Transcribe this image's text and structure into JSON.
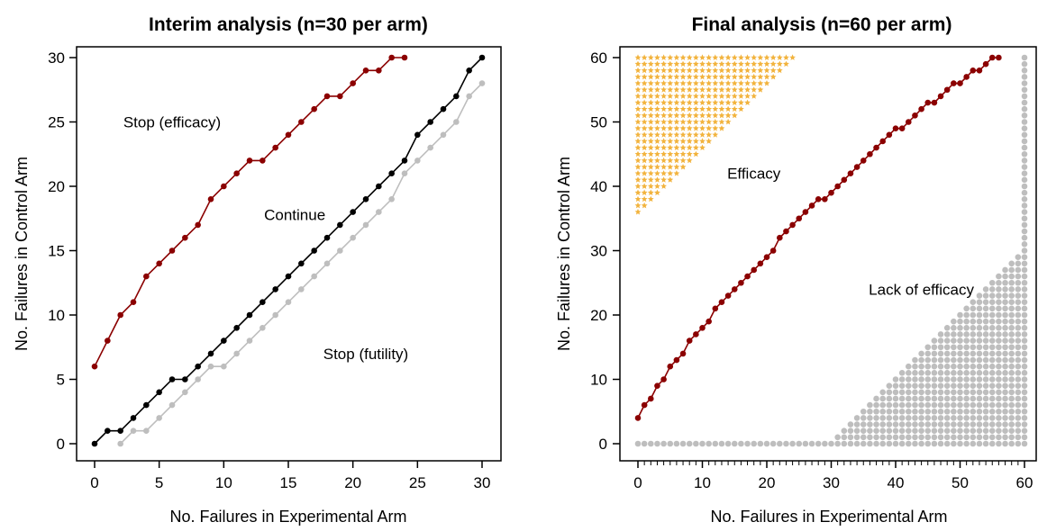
{
  "colors": {
    "red": "#8b0000",
    "black": "#000000",
    "grey": "#bebebe",
    "gold": "#f2b33d"
  },
  "chart_data": [
    {
      "type": "line",
      "title": "Interim analysis (n=30 per arm)",
      "xlabel": "No. Failures in Experimental Arm",
      "ylabel": "No. Failures in Control Arm",
      "xlim": [
        0,
        30
      ],
      "ylim": [
        0,
        30
      ],
      "xticks": [
        "0",
        "5",
        "10",
        "15",
        "20",
        "25",
        "30"
      ],
      "yticks": [
        "0",
        "5",
        "10",
        "15",
        "20",
        "25",
        "30"
      ],
      "annotations": [
        {
          "text": "Stop (efficacy)",
          "x": 6,
          "y": 25
        },
        {
          "text": "Continue",
          "x": 15.5,
          "y": 17.8
        },
        {
          "text": "Stop (futility)",
          "x": 21,
          "y": 7
        }
      ],
      "series": [
        {
          "color": "red",
          "x": [
            0,
            1,
            2,
            3,
            4,
            5,
            6,
            7,
            8,
            9,
            10,
            11,
            12,
            13,
            14,
            15,
            16,
            17,
            18,
            19,
            20,
            21,
            22,
            23,
            24
          ],
          "y": [
            6,
            8,
            10,
            11,
            13,
            14,
            15,
            16,
            17,
            19,
            20,
            21,
            22,
            22,
            23,
            24,
            25,
            26,
            27,
            27,
            28,
            29,
            29,
            30,
            30
          ]
        },
        {
          "color": "black",
          "x": [
            0,
            1,
            2,
            3,
            4,
            5,
            6,
            7,
            8,
            9,
            10,
            11,
            12,
            13,
            14,
            15,
            16,
            17,
            18,
            19,
            20,
            21,
            22,
            23,
            24,
            25,
            26,
            27,
            28,
            29,
            30
          ],
          "y": [
            0,
            1,
            1,
            2,
            3,
            4,
            5,
            5,
            6,
            7,
            8,
            9,
            10,
            11,
            12,
            13,
            14,
            15,
            16,
            17,
            18,
            19,
            20,
            21,
            22,
            24,
            25,
            26,
            27,
            29,
            30
          ]
        },
        {
          "color": "grey",
          "x": [
            2,
            3,
            4,
            5,
            6,
            7,
            8,
            9,
            10,
            11,
            12,
            13,
            14,
            15,
            16,
            17,
            18,
            19,
            20,
            21,
            22,
            23,
            24,
            25,
            26,
            27,
            28,
            29,
            30
          ],
          "y": [
            0,
            1,
            1,
            2,
            3,
            4,
            5,
            6,
            6,
            7,
            8,
            9,
            10,
            11,
            12,
            13,
            14,
            15,
            16,
            17,
            18,
            19,
            21,
            22,
            23,
            24,
            25,
            27,
            28
          ]
        }
      ]
    },
    {
      "type": "scatter",
      "title": "Final analysis (n=60 per arm)",
      "xlabel": "No. Failures in Experimental Arm",
      "ylabel": "No. Failures in Control Arm",
      "xlim": [
        0,
        60
      ],
      "ylim": [
        0,
        60
      ],
      "xticks": [
        "0",
        "10",
        "20",
        "30",
        "40",
        "50",
        "60"
      ],
      "yticks": [
        "0",
        "10",
        "20",
        "30",
        "40",
        "50",
        "60"
      ],
      "annotations": [
        {
          "text": "Efficacy",
          "x": 18,
          "y": 42
        },
        {
          "text": "Lack of efficacy",
          "x": 44,
          "y": 24
        }
      ],
      "efficacy_region": {
        "color": "gold",
        "marker": "star",
        "rule": "y >= 36 + x",
        "x_range": [
          0,
          24
        ],
        "y_max": 60
      },
      "lack_of_efficacy_region": {
        "color": "grey",
        "marker": "circle",
        "x": [
          0,
          1,
          2,
          3,
          4,
          5,
          6,
          7,
          8,
          9,
          10,
          11,
          12,
          13,
          14,
          15,
          16,
          17,
          18,
          19,
          20,
          21,
          22,
          23,
          24,
          25,
          26,
          27,
          28,
          29,
          30,
          31,
          32,
          33,
          34,
          35,
          36,
          37,
          38,
          39,
          40,
          41,
          42,
          43,
          44,
          45,
          46,
          47,
          48,
          49,
          50,
          51,
          52,
          53,
          54,
          55,
          56,
          57,
          58,
          59,
          60
        ],
        "y_max": [
          0,
          0,
          0,
          0,
          0,
          0,
          0,
          0,
          0,
          0,
          0,
          0,
          0,
          0,
          0,
          0,
          0,
          0,
          0,
          0,
          0,
          0,
          0,
          0,
          0,
          0,
          0,
          0,
          0,
          0,
          0,
          1,
          2,
          3,
          4,
          5,
          6,
          7,
          8,
          9,
          10,
          11,
          12,
          13,
          14,
          15,
          16,
          17,
          18,
          19,
          20,
          21,
          22,
          23,
          24,
          25,
          26,
          27,
          28,
          29,
          60
        ]
      },
      "series": [
        {
          "color": "red",
          "x": [
            0,
            1,
            2,
            3,
            4,
            5,
            6,
            7,
            8,
            9,
            10,
            11,
            12,
            13,
            14,
            15,
            16,
            17,
            18,
            19,
            20,
            21,
            22,
            23,
            24,
            25,
            26,
            27,
            28,
            29,
            30,
            31,
            32,
            33,
            34,
            35,
            36,
            37,
            38,
            39,
            40,
            41,
            42,
            43,
            44,
            45,
            46,
            47,
            48,
            49,
            50,
            51,
            52,
            53,
            54,
            55,
            56
          ],
          "y": [
            4,
            6,
            7,
            9,
            10,
            12,
            13,
            14,
            16,
            17,
            18,
            19,
            21,
            22,
            23,
            24,
            25,
            26,
            27,
            28,
            29,
            30,
            32,
            33,
            34,
            35,
            36,
            37,
            38,
            38,
            39,
            40,
            41,
            42,
            43,
            44,
            45,
            46,
            47,
            48,
            49,
            49,
            50,
            51,
            52,
            53,
            53,
            54,
            55,
            56,
            56,
            57,
            58,
            58,
            59,
            60,
            60
          ]
        }
      ]
    }
  ]
}
